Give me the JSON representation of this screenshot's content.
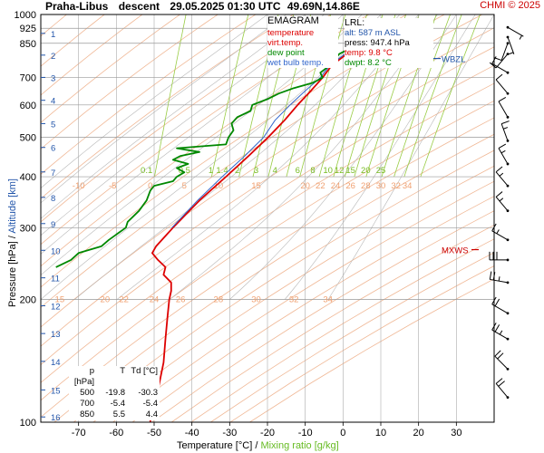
{
  "header": {
    "station": "Praha-Libus",
    "mode": "descent",
    "datetime": "29.05.2025 01:30 UTC",
    "coords": "49.69N,14.86E",
    "copyright": "CHMI © 2025"
  },
  "legend": {
    "title": "EMAGRAM",
    "items": [
      {
        "label": "temperature",
        "color": "#dd0000"
      },
      {
        "label": "virt.temp.",
        "color": "#dd0000"
      },
      {
        "label": "dew point",
        "color": "#008800"
      },
      {
        "label": "wet bulb temp.",
        "color": "#3366cc"
      }
    ]
  },
  "lrl": {
    "title": "LRL:",
    "alt": "alt: 587 m ASL",
    "press": "press: 947.4 hPa",
    "temp": "temp: 9.8 °C",
    "dwpt": "dwpt: 8.2 °C"
  },
  "table": {
    "headers": [
      "p [hPa]",
      "T",
      "Td [°C]"
    ],
    "rows": [
      [
        "500",
        "-19.8",
        "-30.3"
      ],
      [
        "700",
        "-5.4",
        "-5.4"
      ],
      [
        "850",
        "5.5",
        "4.4"
      ]
    ]
  },
  "axes": {
    "x_title": "Temperature [°C]",
    "x_sep": " / ",
    "x_title2": "Mixing ratio [g/kg]",
    "y_title": "Pressure [hPa]",
    "y_sep": " / ",
    "y_title2": "Altitude [km]"
  },
  "markers": {
    "mxws": "MXWS",
    "wbzl": "WBZL"
  },
  "colors": {
    "temperature": "#dd0000",
    "dew_point": "#008800",
    "wet_bulb": "#3366cc",
    "grid": "#999999",
    "dry_adiabat": "#f0b896",
    "moist_adiabat": "#b8b8b8",
    "mixing_ratio": "#99cc44",
    "altitude": "#2255aa"
  },
  "chart_data": {
    "type": "line",
    "title": "EMAGRAM",
    "xlabel": "Temperature [°C]",
    "ylabel": "Pressure [hPa]",
    "xlim": [
      -80,
      40
    ],
    "ylim": [
      1000,
      100
    ],
    "y_scale": "log",
    "x_ticks": [
      -70,
      -60,
      -50,
      -40,
      -30,
      -20,
      -10,
      0,
      10,
      20,
      30
    ],
    "pressure_ticks": [
      100,
      200,
      300,
      400,
      500,
      600,
      700,
      850,
      925,
      1000
    ],
    "altitude_ticks_km": [
      [
        1,
        899
      ],
      [
        2,
        795
      ],
      [
        3,
        701
      ],
      [
        4,
        616
      ],
      [
        5,
        540
      ],
      [
        6,
        472
      ],
      [
        7,
        411
      ],
      [
        8,
        356
      ],
      [
        9,
        307
      ],
      [
        10,
        264
      ],
      [
        11,
        226
      ],
      [
        12,
        193
      ],
      [
        13,
        165
      ],
      [
        14,
        141
      ],
      [
        15,
        120
      ],
      [
        16,
        103
      ]
    ],
    "dry_adiabat_labels": [
      {
        "label": "15",
        "p": 200,
        "t": -75
      },
      {
        "label": "20",
        "p": 200,
        "t": -63
      },
      {
        "label": "22",
        "p": 200,
        "t": -58
      },
      {
        "label": "24",
        "p": 200,
        "t": -50
      },
      {
        "label": "26",
        "p": 200,
        "t": -43
      },
      {
        "label": "28",
        "p": 200,
        "t": -33
      },
      {
        "label": "30",
        "p": 200,
        "t": -23
      },
      {
        "label": "32",
        "p": 200,
        "t": -13
      },
      {
        "label": "34",
        "p": 200,
        "t": -4
      },
      {
        "label": "-10",
        "p": 380,
        "t": -70
      },
      {
        "label": "-5",
        "p": 380,
        "t": -61
      },
      {
        "label": "0",
        "p": 380,
        "t": -51
      },
      {
        "label": "5",
        "p": 380,
        "t": -42
      },
      {
        "label": "10",
        "p": 380,
        "t": -33
      },
      {
        "label": "15",
        "p": 380,
        "t": -23
      },
      {
        "label": "20",
        "p": 380,
        "t": -10
      },
      {
        "label": "22",
        "p": 380,
        "t": -6
      },
      {
        "label": "24",
        "p": 380,
        "t": -2
      },
      {
        "label": "26",
        "p": 380,
        "t": 2
      },
      {
        "label": "28",
        "p": 380,
        "t": 6
      },
      {
        "label": "30",
        "p": 380,
        "t": 10
      },
      {
        "label": "32",
        "p": 380,
        "t": 14
      },
      {
        "label": "34",
        "p": 380,
        "t": 17
      }
    ],
    "mixing_ratio_labels": [
      {
        "label": "0.1",
        "p": 415,
        "t": -52
      },
      {
        "label": "0.5",
        "p": 415,
        "t": -42
      },
      {
        "label": "1",
        "p": 415,
        "t": -35
      },
      {
        "label": "1.4",
        "p": 415,
        "t": -32
      },
      {
        "label": "2",
        "p": 415,
        "t": -28
      },
      {
        "label": "3",
        "p": 415,
        "t": -23
      },
      {
        "label": "4",
        "p": 415,
        "t": -18
      },
      {
        "label": "6",
        "p": 415,
        "t": -12
      },
      {
        "label": "8",
        "p": 415,
        "t": -8
      },
      {
        "label": "10",
        "p": 415,
        "t": -4
      },
      {
        "label": "12",
        "p": 415,
        "t": -1
      },
      {
        "label": "15",
        "p": 415,
        "t": 2
      },
      {
        "label": "20",
        "p": 415,
        "t": 6
      },
      {
        "label": "25",
        "p": 415,
        "t": 10
      }
    ],
    "series": [
      {
        "name": "temperature",
        "color": "#dd0000",
        "points": [
          [
            950,
            9.8
          ],
          [
            925,
            8.0
          ],
          [
            900,
            6.5
          ],
          [
            850,
            5.5
          ],
          [
            800,
            1.0
          ],
          [
            750,
            -3.0
          ],
          [
            700,
            -5.4
          ],
          [
            650,
            -8.5
          ],
          [
            600,
            -12.0
          ],
          [
            550,
            -15.5
          ],
          [
            500,
            -19.8
          ],
          [
            450,
            -25.0
          ],
          [
            400,
            -31.0
          ],
          [
            350,
            -38.0
          ],
          [
            300,
            -45.0
          ],
          [
            270,
            -49.5
          ],
          [
            260,
            -50.5
          ],
          [
            250,
            -49.0
          ],
          [
            240,
            -47.0
          ],
          [
            230,
            -47.5
          ],
          [
            220,
            -45.5
          ],
          [
            210,
            -45.5
          ],
          [
            200,
            -46.0
          ],
          [
            180,
            -46.5
          ],
          [
            160,
            -47.0
          ],
          [
            140,
            -47.5
          ],
          [
            120,
            -49.0
          ],
          [
            110,
            -51.0
          ],
          [
            100,
            -51.0
          ]
        ]
      },
      {
        "name": "wet bulb temp.",
        "color": "#3366cc",
        "points": [
          [
            950,
            8.8
          ],
          [
            925,
            7.5
          ],
          [
            900,
            6.0
          ],
          [
            850,
            5.0
          ],
          [
            800,
            0.5
          ],
          [
            750,
            -3.5
          ],
          [
            700,
            -6.0
          ],
          [
            650,
            -10.0
          ],
          [
            600,
            -14.0
          ],
          [
            550,
            -18.0
          ],
          [
            500,
            -21.0
          ],
          [
            450,
            -26.0
          ],
          [
            400,
            -32.0
          ],
          [
            350,
            -38.5
          ],
          [
            300,
            -45.3
          ]
        ]
      },
      {
        "name": "dew point",
        "color": "#008800",
        "points": [
          [
            950,
            8.2
          ],
          [
            925,
            7.0
          ],
          [
            900,
            5.5
          ],
          [
            850,
            4.4
          ],
          [
            800,
            -1.0
          ],
          [
            750,
            -3.5
          ],
          [
            720,
            -6.0
          ],
          [
            700,
            -5.4
          ],
          [
            680,
            -8.0
          ],
          [
            660,
            -13.0
          ],
          [
            640,
            -17.0
          ],
          [
            620,
            -20.0
          ],
          [
            600,
            -24.0
          ],
          [
            580,
            -24.5
          ],
          [
            560,
            -28.0
          ],
          [
            540,
            -29.5
          ],
          [
            520,
            -29.0
          ],
          [
            500,
            -30.3
          ],
          [
            480,
            -31.0
          ],
          [
            470,
            -44.0
          ],
          [
            460,
            -38.0
          ],
          [
            450,
            -43.0
          ],
          [
            440,
            -45.0
          ],
          [
            430,
            -41.0
          ],
          [
            420,
            -44.0
          ],
          [
            410,
            -42.0
          ],
          [
            400,
            -44.0
          ],
          [
            390,
            -45.0
          ],
          [
            380,
            -50.0
          ],
          [
            370,
            -51.0
          ],
          [
            350,
            -52.0
          ],
          [
            330,
            -54.0
          ],
          [
            310,
            -57.0
          ],
          [
            300,
            -57.5
          ],
          [
            280,
            -62.0
          ],
          [
            270,
            -64.0
          ],
          [
            260,
            -70.0
          ],
          [
            250,
            -72.0
          ],
          [
            240,
            -76.0
          ]
        ]
      }
    ],
    "wind_barbs": [
      {
        "p": 115,
        "dir": 320,
        "kt": 20
      },
      {
        "p": 135,
        "dir": 315,
        "kt": 20
      },
      {
        "p": 160,
        "dir": 300,
        "kt": 25
      },
      {
        "p": 185,
        "dir": 300,
        "kt": 20
      },
      {
        "p": 220,
        "dir": 280,
        "kt": 25
      },
      {
        "p": 250,
        "dir": 270,
        "kt": 30
      },
      {
        "p": 280,
        "dir": 300,
        "kt": 15
      },
      {
        "p": 330,
        "dir": 320,
        "kt": 15
      },
      {
        "p": 380,
        "dir": 320,
        "kt": 15
      },
      {
        "p": 430,
        "dir": 330,
        "kt": 15
      },
      {
        "p": 490,
        "dir": 340,
        "kt": 15
      },
      {
        "p": 560,
        "dir": 330,
        "kt": 10
      },
      {
        "p": 640,
        "dir": 320,
        "kt": 10
      },
      {
        "p": 720,
        "dir": 300,
        "kt": 10
      },
      {
        "p": 800,
        "dir": 220,
        "kt": 10
      },
      {
        "p": 850,
        "dir": 200,
        "kt": 10
      },
      {
        "p": 880,
        "dir": 160,
        "kt": 5
      },
      {
        "p": 930,
        "dir": 120,
        "kt": 5
      }
    ],
    "markers": [
      {
        "name": "MXWS",
        "p": 265
      },
      {
        "name": "WBZL",
        "p": 780
      }
    ]
  }
}
